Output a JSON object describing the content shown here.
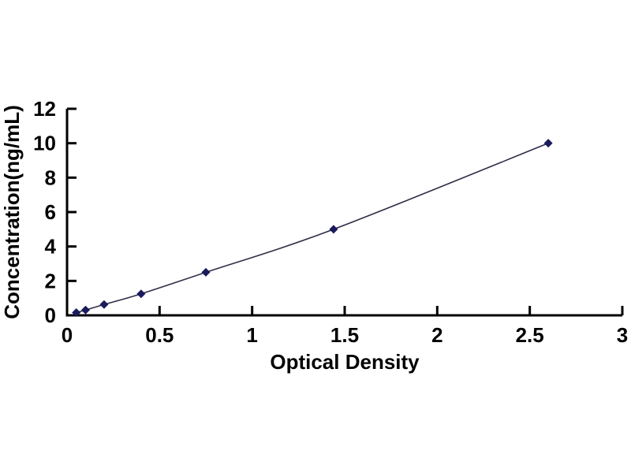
{
  "page": {
    "background": "#ffffff"
  },
  "chart_data": {
    "type": "scatter",
    "title": "",
    "xlabel": "Optical Density",
    "ylabel": "Concentration(ng/mL)",
    "x": [
      0.05,
      0.1,
      0.2,
      0.4,
      0.75,
      1.44,
      2.6
    ],
    "y": [
      0.16,
      0.31,
      0.63,
      1.25,
      2.5,
      5,
      10
    ],
    "xlim": [
      0,
      3
    ],
    "ylim": [
      0,
      12
    ],
    "x_ticks": [
      0,
      0.5,
      1,
      1.5,
      2,
      2.5,
      3
    ],
    "y_ticks": [
      0,
      2,
      4,
      6,
      8,
      10,
      12
    ],
    "grid": false,
    "legend": false,
    "line_style": "smooth",
    "marker": "diamond",
    "colors": {
      "marker": "#1a1a5c",
      "line": "#2e2e48",
      "axis": "#000000",
      "tick_text": "#000000"
    }
  }
}
